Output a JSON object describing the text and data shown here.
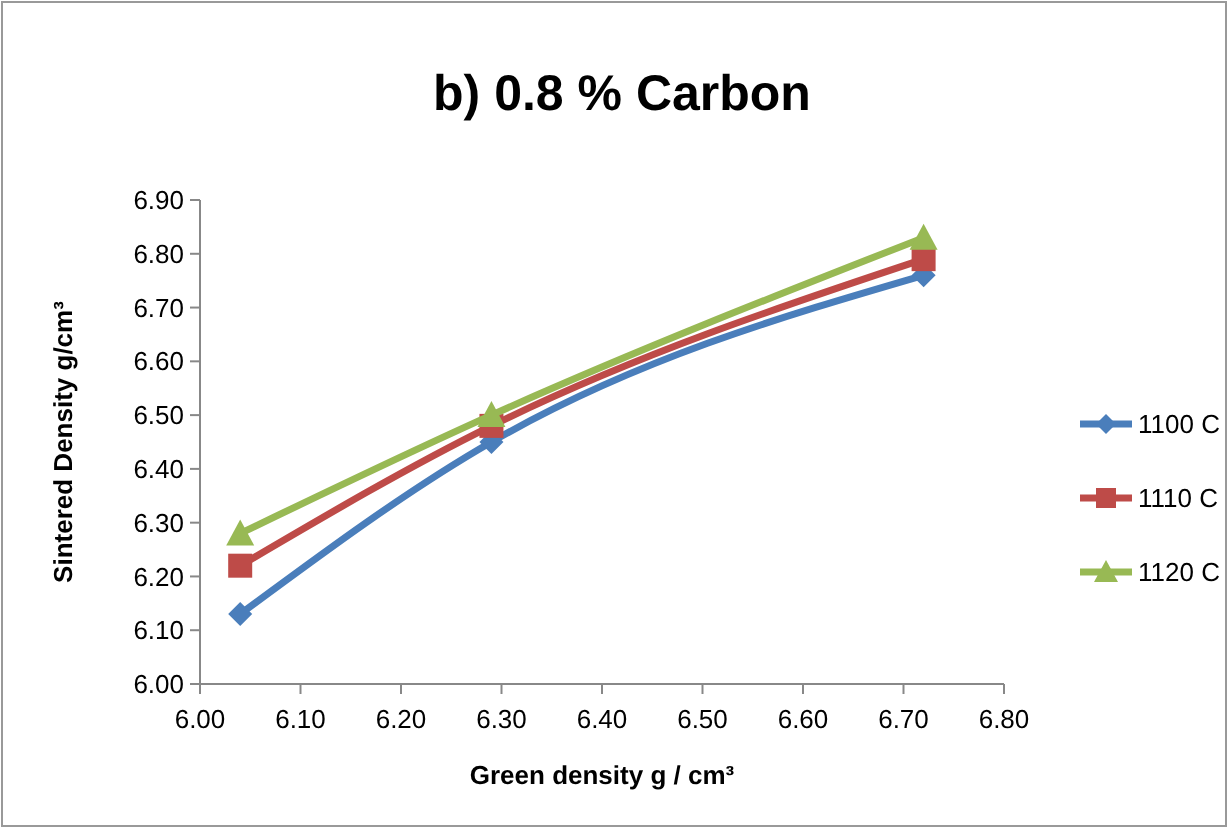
{
  "chart_data": {
    "type": "line",
    "title": "b) 0.8 % Carbon",
    "xlabel": "Green density g / cm³",
    "ylabel": "Sintered Density g/cm³",
    "x": [
      6.04,
      6.29,
      6.72
    ],
    "series": [
      {
        "name": "1100 C",
        "color": "#4a7ebb",
        "marker": "diamond",
        "values": [
          6.13,
          6.45,
          6.76
        ]
      },
      {
        "name": "1110 C",
        "color": "#be4b48",
        "marker": "square",
        "values": [
          6.22,
          6.48,
          6.79
        ]
      },
      {
        "name": "1120 C",
        "color": "#98b954",
        "marker": "triangle",
        "values": [
          6.28,
          6.5,
          6.83
        ]
      }
    ],
    "xlim": [
      6.0,
      6.8
    ],
    "xticks": [
      {
        "value": 6.0,
        "label": "6.00"
      },
      {
        "value": 6.1,
        "label": "6.10"
      },
      {
        "value": 6.2,
        "label": "6.20"
      },
      {
        "value": 6.3,
        "label": "6.30"
      },
      {
        "value": 6.4,
        "label": "6.40"
      },
      {
        "value": 6.5,
        "label": "6.50"
      },
      {
        "value": 6.6,
        "label": "6.60"
      },
      {
        "value": 6.7,
        "label": "6.70"
      },
      {
        "value": 6.8,
        "label": "6.80"
      }
    ],
    "ylim": [
      6.0,
      6.9
    ],
    "yticks": [
      {
        "value": 6.0,
        "label": "6.00"
      },
      {
        "value": 6.1,
        "label": "6.10"
      },
      {
        "value": 6.2,
        "label": "6.20"
      },
      {
        "value": 6.3,
        "label": "6.30"
      },
      {
        "value": 6.4,
        "label": "6.40"
      },
      {
        "value": 6.5,
        "label": "6.50"
      },
      {
        "value": 6.6,
        "label": "6.60"
      },
      {
        "value": 6.7,
        "label": "6.70"
      },
      {
        "value": 6.8,
        "label": "6.80"
      },
      {
        "value": 6.9,
        "label": "6.90"
      }
    ],
    "grid": false,
    "legend": "right",
    "line_style": "solid"
  }
}
